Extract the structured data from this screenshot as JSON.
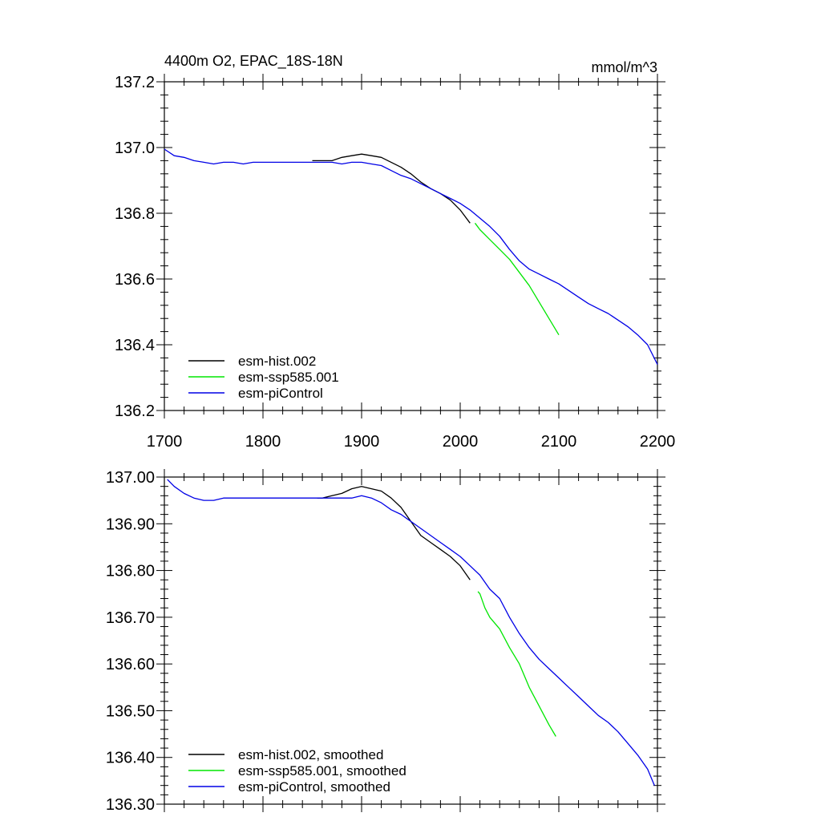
{
  "chart_data": [
    {
      "type": "line",
      "title": "4400m O2, EPAC_18S-18N",
      "units": "mmol/m^3",
      "xlim": [
        1700,
        2200
      ],
      "ylim": [
        136.2,
        137.2
      ],
      "x_ticks": [
        "1700",
        "1800",
        "1900",
        "2000",
        "2100",
        "2200"
      ],
      "y_ticks": [
        "136.2",
        "136.4",
        "136.6",
        "136.8",
        "137.0",
        "137.2"
      ],
      "grid": false,
      "legend_position": "bottom-left",
      "series": [
        {
          "name": "esm-hist.002",
          "color": "#000000",
          "x": [
            1850,
            1860,
            1870,
            1880,
            1890,
            1900,
            1910,
            1920,
            1930,
            1940,
            1950,
            1960,
            1970,
            1980,
            1990,
            2000,
            2010
          ],
          "y": [
            136.96,
            136.96,
            136.96,
            136.97,
            136.975,
            136.98,
            136.975,
            136.97,
            136.955,
            136.94,
            136.92,
            136.895,
            136.875,
            136.86,
            136.84,
            136.81,
            136.77
          ]
        },
        {
          "name": "esm-ssp585.001",
          "color": "#00e600",
          "x": [
            2015,
            2020,
            2030,
            2040,
            2050,
            2060,
            2070,
            2080,
            2090,
            2100
          ],
          "y": [
            136.77,
            136.75,
            136.72,
            136.69,
            136.66,
            136.62,
            136.58,
            136.53,
            136.48,
            136.43
          ]
        },
        {
          "name": "esm-piControl",
          "color": "#0000e6",
          "x": [
            1700,
            1710,
            1720,
            1730,
            1740,
            1750,
            1760,
            1770,
            1780,
            1790,
            1800,
            1810,
            1820,
            1830,
            1840,
            1850,
            1860,
            1870,
            1880,
            1890,
            1900,
            1910,
            1920,
            1930,
            1940,
            1950,
            1960,
            1970,
            1980,
            1990,
            2000,
            2010,
            2020,
            2030,
            2040,
            2050,
            2060,
            2070,
            2080,
            2090,
            2100,
            2110,
            2120,
            2130,
            2140,
            2150,
            2160,
            2170,
            2180,
            2190,
            2200
          ],
          "y": [
            136.995,
            136.975,
            136.97,
            136.96,
            136.955,
            136.95,
            136.955,
            136.955,
            136.95,
            136.955,
            136.955,
            136.955,
            136.955,
            136.955,
            136.955,
            136.955,
            136.955,
            136.955,
            136.95,
            136.955,
            136.955,
            136.95,
            136.945,
            136.93,
            136.915,
            136.905,
            136.89,
            136.875,
            136.86,
            136.845,
            136.83,
            136.81,
            136.785,
            136.76,
            136.73,
            136.69,
            136.655,
            136.63,
            136.615,
            136.6,
            136.585,
            136.565,
            136.545,
            136.525,
            136.51,
            136.495,
            136.475,
            136.455,
            136.43,
            136.4,
            136.34
          ]
        }
      ]
    },
    {
      "type": "line",
      "title": "",
      "xlim": [
        1700,
        2200
      ],
      "ylim": [
        136.3,
        137.0
      ],
      "y_ticks": [
        "136.30",
        "136.40",
        "136.50",
        "136.60",
        "136.70",
        "136.80",
        "136.90",
        "137.00"
      ],
      "grid": false,
      "legend_position": "bottom-left",
      "series": [
        {
          "name": "esm-hist.002, smoothed",
          "color": "#000000",
          "x": [
            1855,
            1860,
            1870,
            1880,
            1890,
            1900,
            1910,
            1920,
            1930,
            1940,
            1950,
            1960,
            1970,
            1980,
            1990,
            2000,
            2010
          ],
          "y": [
            136.955,
            136.955,
            136.96,
            136.965,
            136.975,
            136.98,
            136.975,
            136.97,
            136.955,
            136.935,
            136.905,
            136.875,
            136.86,
            136.845,
            136.83,
            136.81,
            136.78
          ]
        },
        {
          "name": "esm-ssp585.001, smoothed",
          "color": "#00e600",
          "x": [
            2018,
            2020,
            2025,
            2030,
            2040,
            2050,
            2060,
            2070,
            2080,
            2090,
            2097
          ],
          "y": [
            136.755,
            136.75,
            136.72,
            136.7,
            136.675,
            136.635,
            136.6,
            136.55,
            136.51,
            136.47,
            136.445
          ]
        },
        {
          "name": "esm-piControl, smoothed",
          "color": "#0000e6",
          "x": [
            1703,
            1710,
            1720,
            1730,
            1740,
            1750,
            1760,
            1770,
            1780,
            1790,
            1800,
            1810,
            1820,
            1830,
            1840,
            1850,
            1860,
            1870,
            1880,
            1890,
            1900,
            1910,
            1920,
            1930,
            1940,
            1950,
            1960,
            1970,
            1980,
            1990,
            2000,
            2010,
            2020,
            2030,
            2040,
            2050,
            2060,
            2070,
            2080,
            2090,
            2100,
            2110,
            2120,
            2130,
            2140,
            2150,
            2160,
            2170,
            2180,
            2190,
            2197
          ],
          "y": [
            136.995,
            136.98,
            136.965,
            136.955,
            136.95,
            136.95,
            136.955,
            136.955,
            136.955,
            136.955,
            136.955,
            136.955,
            136.955,
            136.955,
            136.955,
            136.955,
            136.955,
            136.955,
            136.955,
            136.955,
            136.96,
            136.955,
            136.945,
            136.93,
            136.92,
            136.905,
            136.89,
            136.875,
            136.86,
            136.845,
            136.83,
            136.81,
            136.79,
            136.76,
            136.74,
            136.7,
            136.665,
            136.635,
            136.61,
            136.59,
            136.57,
            136.55,
            136.53,
            136.51,
            136.49,
            136.475,
            136.455,
            136.43,
            136.405,
            136.375,
            136.34
          ]
        }
      ]
    }
  ]
}
